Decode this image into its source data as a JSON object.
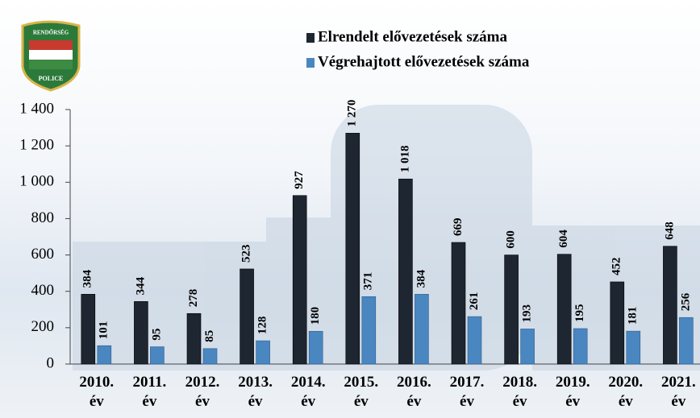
{
  "logo": {
    "top": "RENDŐRSÉG",
    "bottom": "POLICE"
  },
  "chart_data": {
    "type": "bar",
    "categories": [
      "2010. év",
      "2011. év",
      "2012. év",
      "2013. év",
      "2014. év",
      "2015. év",
      "2016. év",
      "2017. év",
      "2018. év",
      "2019. év",
      "2020. év",
      "2021. év"
    ],
    "series": [
      {
        "name": "Elrendelt elővezetések száma",
        "color": "#1e2631",
        "values": [
          384,
          344,
          278,
          523,
          927,
          1270,
          1018,
          669,
          600,
          604,
          452,
          648
        ],
        "value_labels": [
          "384",
          "344",
          "278",
          "523",
          "927",
          "1 270",
          "1 018",
          "669",
          "600",
          "604",
          "452",
          "648"
        ]
      },
      {
        "name": "Végrehajtott elővezetések száma",
        "color": "#4a86c0",
        "values": [
          101,
          95,
          85,
          128,
          180,
          371,
          384,
          261,
          193,
          195,
          181,
          256
        ]
      }
    ],
    "ylim": [
      0,
      1400
    ],
    "yticks": [
      0,
      200,
      400,
      600,
      800,
      {
        "value": 1000,
        "label": "1 000"
      },
      {
        "value": 1200,
        "label": "1 200"
      },
      {
        "value": 1400,
        "label": "1 400"
      }
    ],
    "legend": "top"
  }
}
